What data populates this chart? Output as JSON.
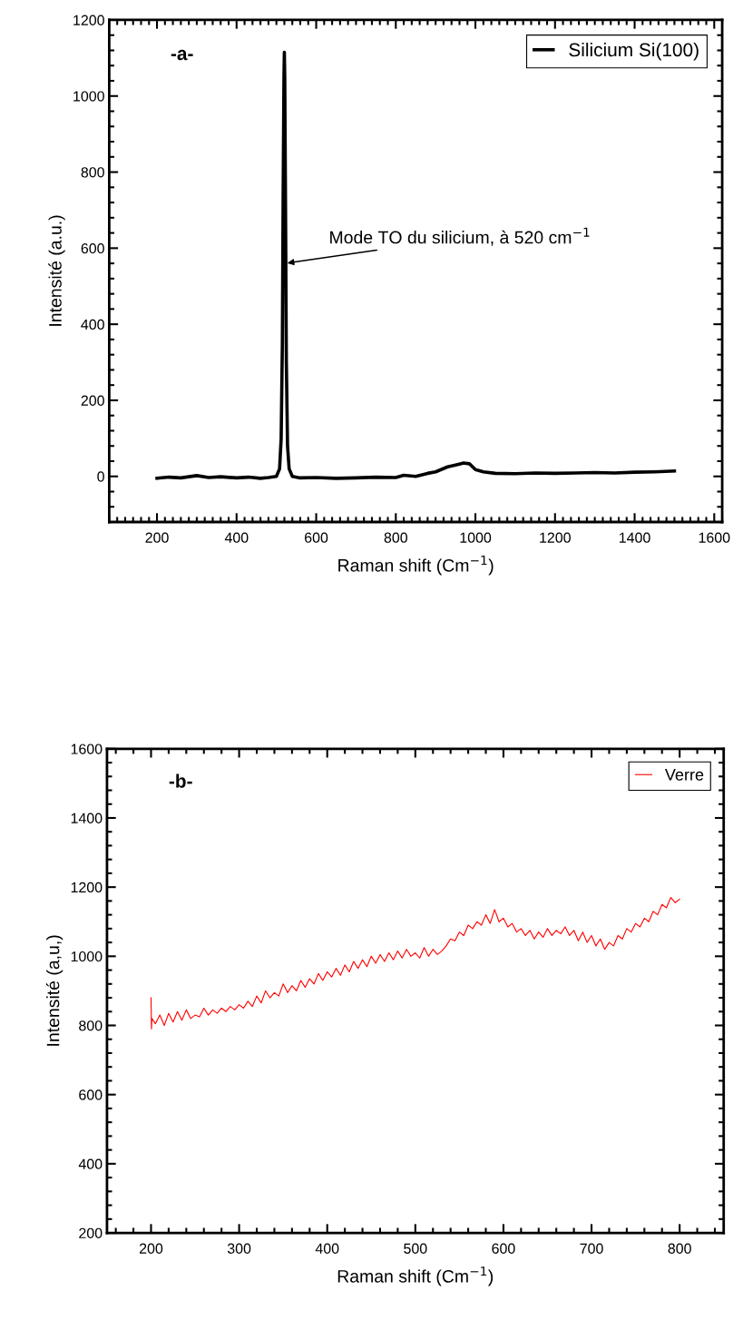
{
  "chart_data": [
    {
      "type": "line",
      "xlabel": "Raman shift (Cm$^{−1}$)",
      "ylabel": "Intensité (a.u.)",
      "xlim": [
        80,
        1620
      ],
      "ylim": [
        -120,
        1200
      ],
      "xticks": [
        200,
        400,
        600,
        800,
        1000,
        1200,
        1400,
        1600
      ],
      "yticks": [
        0,
        200,
        400,
        600,
        800,
        1000,
        1200
      ],
      "grid": false,
      "legend": "top right",
      "marker": "none",
      "line_style": "solid",
      "series": [
        {
          "name": "Silicium Si(100)",
          "color": "#000000",
          "x": [
            200,
            230,
            260,
            300,
            330,
            360,
            400,
            430,
            460,
            480,
            500,
            508,
            512,
            515,
            517,
            519,
            520,
            521,
            523,
            525,
            528,
            532,
            540,
            560,
            600,
            650,
            700,
            750,
            800,
            820,
            850,
            880,
            900,
            930,
            950,
            970,
            985,
            1000,
            1020,
            1050,
            1100,
            1150,
            1200,
            1250,
            1300,
            1350,
            1400,
            1450,
            1500
          ],
          "values": [
            -5,
            -2,
            -4,
            2,
            -3,
            -1,
            -4,
            -2,
            -5,
            -3,
            0,
            20,
            100,
            350,
            750,
            1050,
            1115,
            1050,
            700,
            300,
            80,
            20,
            0,
            -4,
            -3,
            -5,
            -4,
            -2,
            -3,
            3,
            0,
            8,
            12,
            25,
            30,
            35,
            33,
            18,
            12,
            8,
            7,
            9,
            8,
            9,
            10,
            9,
            11,
            12,
            14
          ]
        }
      ],
      "annotations": [
        {
          "text": "Mode TO du silicium, à 520 cm$^{−1}$",
          "x": 521,
          "y": 560
        },
        "-a-"
      ]
    },
    {
      "type": "line",
      "xlabel": "Raman shift (Cm$^{−1}$)",
      "ylabel": "Intensité (a,u,)",
      "xlim": [
        150,
        850
      ],
      "ylim": [
        200,
        1600
      ],
      "xticks": [
        200,
        300,
        400,
        500,
        600,
        700,
        800
      ],
      "yticks": [
        200,
        400,
        600,
        800,
        1000,
        1200,
        1400,
        1600
      ],
      "grid": false,
      "legend": "top right",
      "marker": "none",
      "line_style": "solid",
      "series": [
        {
          "name": "Verre",
          "color": "#ff0000",
          "x": [
            200,
            200.5,
            201,
            205,
            210,
            215,
            220,
            225,
            230,
            235,
            240,
            245,
            250,
            255,
            260,
            265,
            270,
            275,
            280,
            285,
            290,
            295,
            300,
            305,
            310,
            315,
            320,
            325,
            330,
            335,
            340,
            345,
            350,
            355,
            360,
            365,
            370,
            375,
            380,
            385,
            390,
            395,
            400,
            405,
            410,
            415,
            420,
            425,
            430,
            435,
            440,
            445,
            450,
            455,
            460,
            465,
            470,
            475,
            480,
            485,
            490,
            495,
            500,
            505,
            510,
            515,
            520,
            525,
            530,
            535,
            540,
            545,
            550,
            555,
            560,
            565,
            570,
            575,
            580,
            585,
            590,
            595,
            600,
            605,
            610,
            615,
            620,
            625,
            630,
            635,
            640,
            645,
            650,
            655,
            660,
            665,
            670,
            675,
            680,
            685,
            690,
            695,
            700,
            705,
            710,
            715,
            720,
            725,
            730,
            735,
            740,
            745,
            750,
            755,
            760,
            765,
            770,
            775,
            780,
            785,
            790,
            795,
            800
          ],
          "values": [
            880,
            790,
            820,
            805,
            830,
            800,
            835,
            810,
            840,
            815,
            845,
            820,
            830,
            825,
            850,
            830,
            845,
            835,
            850,
            840,
            855,
            845,
            860,
            850,
            870,
            855,
            885,
            865,
            900,
            880,
            895,
            885,
            920,
            895,
            915,
            900,
            930,
            910,
            935,
            920,
            950,
            930,
            955,
            940,
            965,
            945,
            975,
            955,
            985,
            965,
            990,
            970,
            1000,
            980,
            1005,
            985,
            1010,
            990,
            1015,
            995,
            1020,
            1000,
            1010,
            995,
            1025,
            1000,
            1020,
            1005,
            1015,
            1030,
            1050,
            1045,
            1070,
            1060,
            1090,
            1080,
            1100,
            1090,
            1120,
            1095,
            1135,
            1100,
            1110,
            1085,
            1095,
            1070,
            1080,
            1060,
            1075,
            1050,
            1070,
            1055,
            1080,
            1060,
            1075,
            1065,
            1085,
            1060,
            1075,
            1045,
            1070,
            1040,
            1060,
            1030,
            1050,
            1020,
            1040,
            1030,
            1060,
            1050,
            1080,
            1070,
            1095,
            1085,
            1110,
            1100,
            1130,
            1120,
            1150,
            1140,
            1170,
            1155,
            1165
          ]
        }
      ],
      "annotations": [
        "-b-"
      ]
    }
  ]
}
